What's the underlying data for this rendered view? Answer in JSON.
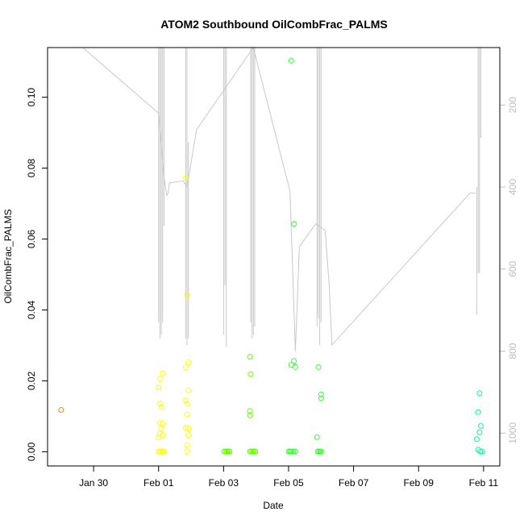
{
  "chart_data": {
    "type": "scatter",
    "title": "ATOM2 Southbound OilCombFrac_PALMS",
    "xlabel": "Date",
    "ylabel": "OilCombFrac_PALMS",
    "x_tick_labels": [
      "Jan 30",
      "Feb 01",
      "Feb 03",
      "Feb 05",
      "Feb 07",
      "Feb 09",
      "Feb 11"
    ],
    "x_ticks": [
      "2017-01-30",
      "2017-02-01",
      "2017-02-03",
      "2017-02-05",
      "2017-02-07",
      "2017-02-09",
      "2017-02-11"
    ],
    "xlim": [
      "2017-01-28T14:00",
      "2017-02-11T12:00"
    ],
    "ylim": [
      -0.004,
      0.114
    ],
    "y_ticks": [
      0.0,
      0.02,
      0.04,
      0.06,
      0.08,
      0.1
    ],
    "y_tick_labels": [
      "0.00",
      "0.02",
      "0.04",
      "0.06",
      "0.08",
      "0.10"
    ],
    "right_axis": {
      "ticks": [
        200,
        400,
        600,
        800,
        1000
      ],
      "tick_labels": [
        "200",
        "400",
        "600",
        "800",
        "1000"
      ],
      "lim": [
        60,
        1080
      ],
      "reversed": true,
      "color": "#bdbdbd"
    },
    "points": [
      {
        "x": "2017-01-29T00:00",
        "y": 0.0118,
        "color": "#ff8c00"
      },
      {
        "x": "2017-02-01T00:00",
        "y": 0.0182,
        "color": "#ffff00"
      },
      {
        "x": "2017-02-01T01:00",
        "y": 0.0206,
        "color": "#ffff00"
      },
      {
        "x": "2017-02-01T03:00",
        "y": 0.0221,
        "color": "#ffff00"
      },
      {
        "x": "2017-02-01T01:00",
        "y": 0.0136,
        "color": "#ffff00"
      },
      {
        "x": "2017-02-01T02:00",
        "y": 0.0126,
        "color": "#ffff00"
      },
      {
        "x": "2017-02-01T01:00",
        "y": 0.0081,
        "color": "#ffff00"
      },
      {
        "x": "2017-02-01T03:00",
        "y": 0.0079,
        "color": "#ffff00"
      },
      {
        "x": "2017-02-01T02:00",
        "y": 0.0065,
        "color": "#ffff00"
      },
      {
        "x": "2017-02-01T01:00",
        "y": 0.0052,
        "color": "#ffff00"
      },
      {
        "x": "2017-02-01T03:00",
        "y": 0.0047,
        "color": "#ffff00"
      },
      {
        "x": "2017-02-01T00:00",
        "y": 0.0041,
        "color": "#ffff00"
      },
      {
        "x": "2017-02-01T00:00",
        "y": 0.0001,
        "color": "#ffff00"
      },
      {
        "x": "2017-02-01T01:00",
        "y": 0.0001,
        "color": "#ffff00"
      },
      {
        "x": "2017-02-01T02:00",
        "y": 0.0001,
        "color": "#ffff00"
      },
      {
        "x": "2017-02-01T03:00",
        "y": 0.0001,
        "color": "#ffff00"
      },
      {
        "x": "2017-02-01T04:00",
        "y": 0.0001,
        "color": "#ffff00"
      },
      {
        "x": "2017-02-01T20:00",
        "y": 0.0772,
        "color": "#ffff00"
      },
      {
        "x": "2017-02-01T21:00",
        "y": 0.0442,
        "color": "#ffff00"
      },
      {
        "x": "2017-02-01T22:00",
        "y": 0.0252,
        "color": "#ffff00"
      },
      {
        "x": "2017-02-01T20:00",
        "y": 0.0238,
        "color": "#ffff00"
      },
      {
        "x": "2017-02-01T22:00",
        "y": 0.0173,
        "color": "#ffff00"
      },
      {
        "x": "2017-02-01T20:00",
        "y": 0.0145,
        "color": "#ffff00"
      },
      {
        "x": "2017-02-01T21:00",
        "y": 0.0135,
        "color": "#ffff00"
      },
      {
        "x": "2017-02-01T21:00",
        "y": 0.0105,
        "color": "#ffff00"
      },
      {
        "x": "2017-02-01T20:00",
        "y": 0.0068,
        "color": "#ffff00"
      },
      {
        "x": "2017-02-01T22:00",
        "y": 0.0065,
        "color": "#ffff00"
      },
      {
        "x": "2017-02-01T22:00",
        "y": 0.0047,
        "color": "#ffff00"
      },
      {
        "x": "2017-02-01T21:00",
        "y": 0.0019,
        "color": "#ffff00"
      },
      {
        "x": "2017-02-01T21:00",
        "y": 0.0001,
        "color": "#ffff00"
      },
      {
        "x": "2017-02-03T00:30",
        "y": 0.0001,
        "color": "#66ff00"
      },
      {
        "x": "2017-02-03T01:30",
        "y": 0.0001,
        "color": "#66ff00"
      },
      {
        "x": "2017-02-03T02:30",
        "y": 0.0001,
        "color": "#66ff00"
      },
      {
        "x": "2017-02-03T03:30",
        "y": 0.0001,
        "color": "#66ff00"
      },
      {
        "x": "2017-02-03T04:30",
        "y": 0.0001,
        "color": "#66ff00"
      },
      {
        "x": "2017-02-03T19:30",
        "y": 0.0268,
        "color": "#66ff00"
      },
      {
        "x": "2017-02-03T20:00",
        "y": 0.0219,
        "color": "#66ff00"
      },
      {
        "x": "2017-02-03T19:30",
        "y": 0.0115,
        "color": "#66ff00"
      },
      {
        "x": "2017-02-03T19:30",
        "y": 0.0103,
        "color": "#66ff00"
      },
      {
        "x": "2017-02-03T19:30",
        "y": 0.0001,
        "color": "#66ff00"
      },
      {
        "x": "2017-02-03T20:30",
        "y": 0.0001,
        "color": "#66ff00"
      },
      {
        "x": "2017-02-03T21:30",
        "y": 0.0001,
        "color": "#66ff00"
      },
      {
        "x": "2017-02-03T22:30",
        "y": 0.0001,
        "color": "#66ff00"
      },
      {
        "x": "2017-02-03T23:30",
        "y": 0.0001,
        "color": "#66ff00"
      },
      {
        "x": "2017-02-05T02:00",
        "y": 0.1103,
        "color": "#33ff33"
      },
      {
        "x": "2017-02-05T04:00",
        "y": 0.0643,
        "color": "#33ff33"
      },
      {
        "x": "2017-02-05T04:00",
        "y": 0.0256,
        "color": "#33ff33"
      },
      {
        "x": "2017-02-05T02:00",
        "y": 0.0245,
        "color": "#33ff33"
      },
      {
        "x": "2017-02-05T05:00",
        "y": 0.0239,
        "color": "#33ff33"
      },
      {
        "x": "2017-02-05T00:00",
        "y": 0.0001,
        "color": "#33ff33"
      },
      {
        "x": "2017-02-05T01:00",
        "y": 0.0001,
        "color": "#33ff33"
      },
      {
        "x": "2017-02-05T02:00",
        "y": 0.0001,
        "color": "#33ff33"
      },
      {
        "x": "2017-02-05T03:30",
        "y": 0.0001,
        "color": "#33ff33"
      },
      {
        "x": "2017-02-05T05:00",
        "y": 0.0001,
        "color": "#33ff33"
      },
      {
        "x": "2017-02-05T22:00",
        "y": 0.0239,
        "color": "#33ff33"
      },
      {
        "x": "2017-02-06T00:00",
        "y": 0.0162,
        "color": "#33ff33"
      },
      {
        "x": "2017-02-06T00:00",
        "y": 0.0151,
        "color": "#33ff33"
      },
      {
        "x": "2017-02-05T21:00",
        "y": 0.0041,
        "color": "#33ff33"
      },
      {
        "x": "2017-02-05T21:30",
        "y": 0.0001,
        "color": "#33ff33"
      },
      {
        "x": "2017-02-05T22:30",
        "y": 0.0001,
        "color": "#33ff33"
      },
      {
        "x": "2017-02-05T23:30",
        "y": 0.0001,
        "color": "#33ff33"
      },
      {
        "x": "2017-02-06T00:00",
        "y": 0.0001,
        "color": "#33ff33"
      },
      {
        "x": "2017-02-10T21:00",
        "y": 0.0165,
        "color": "#00ff99"
      },
      {
        "x": "2017-02-10T20:00",
        "y": 0.0112,
        "color": "#00ff99"
      },
      {
        "x": "2017-02-10T22:00",
        "y": 0.0073,
        "color": "#00ff99"
      },
      {
        "x": "2017-02-10T21:00",
        "y": 0.0055,
        "color": "#00ff99"
      },
      {
        "x": "2017-02-10T19:00",
        "y": 0.0036,
        "color": "#00ff99"
      },
      {
        "x": "2017-02-10T20:00",
        "y": 0.0006,
        "color": "#00ff99"
      },
      {
        "x": "2017-02-10T21:30",
        "y": 0.0001,
        "color": "#00ff99"
      },
      {
        "x": "2017-02-10T23:00",
        "y": 0.0001,
        "color": "#00ff99"
      }
    ],
    "altitude_line": {
      "color": "#c8c8c8",
      "axis": "right",
      "points": [
        {
          "x": "2017-01-29T16:00",
          "y": 55
        },
        {
          "x": "2017-02-01T00:00",
          "y": 220
        },
        {
          "x": "2017-02-01T04:00",
          "y": 375
        },
        {
          "x": "2017-02-01T06:00",
          "y": 420
        },
        {
          "x": "2017-02-01T07:00",
          "y": 415
        },
        {
          "x": "2017-02-01T08:00",
          "y": 390
        },
        {
          "x": "2017-02-01T18:00",
          "y": 385
        },
        {
          "x": "2017-02-01T21:00",
          "y": 400
        },
        {
          "x": "2017-02-02T04:00",
          "y": 260
        },
        {
          "x": "2017-02-03T22:00",
          "y": 55
        },
        {
          "x": "2017-02-05T01:00",
          "y": 410
        },
        {
          "x": "2017-02-05T05:00",
          "y": 800
        },
        {
          "x": "2017-02-05T08:00",
          "y": 545
        },
        {
          "x": "2017-02-05T20:00",
          "y": 490
        },
        {
          "x": "2017-02-06T03:00",
          "y": 505
        },
        {
          "x": "2017-02-06T06:00",
          "y": 640
        },
        {
          "x": "2017-02-06T08:00",
          "y": 785
        },
        {
          "x": "2017-02-10T14:00",
          "y": 415
        },
        {
          "x": "2017-02-10T18:00",
          "y": 415
        }
      ],
      "spikes": [
        {
          "x": "2017-02-01T00:00",
          "low": 60,
          "high": 730
        },
        {
          "x": "2017-02-01T01:00",
          "low": 60,
          "high": 770
        },
        {
          "x": "2017-02-01T02:00",
          "low": 60,
          "high": 760
        },
        {
          "x": "2017-02-01T03:00",
          "low": 60,
          "high": 730
        },
        {
          "x": "2017-02-01T04:00",
          "low": 60,
          "high": 495
        },
        {
          "x": "2017-02-01T20:00",
          "low": 60,
          "high": 770
        },
        {
          "x": "2017-02-01T21:00",
          "low": 60,
          "high": 785
        },
        {
          "x": "2017-02-01T22:00",
          "low": 290,
          "high": 770
        },
        {
          "x": "2017-02-03T00:00",
          "low": 60,
          "high": 760
        },
        {
          "x": "2017-02-03T01:00",
          "low": 60,
          "high": 640
        },
        {
          "x": "2017-02-03T02:00",
          "low": 60,
          "high": 790
        },
        {
          "x": "2017-02-03T20:00",
          "low": 60,
          "high": 730
        },
        {
          "x": "2017-02-03T21:00",
          "low": 60,
          "high": 770
        },
        {
          "x": "2017-02-03T22:00",
          "low": 60,
          "high": 760
        },
        {
          "x": "2017-02-03T23:00",
          "low": 60,
          "high": 740
        },
        {
          "x": "2017-02-05T21:00",
          "low": 60,
          "high": 740
        },
        {
          "x": "2017-02-05T22:00",
          "low": 60,
          "high": 720
        },
        {
          "x": "2017-02-05T23:00",
          "low": 60,
          "high": 785
        },
        {
          "x": "2017-02-06T00:00",
          "low": 60,
          "high": 730
        },
        {
          "x": "2017-02-10T19:00",
          "low": 400,
          "high": 710
        },
        {
          "x": "2017-02-10T20:00",
          "low": 60,
          "high": 610
        },
        {
          "x": "2017-02-10T21:00",
          "low": 60,
          "high": 610
        },
        {
          "x": "2017-02-10T22:00",
          "low": 60,
          "high": 280
        }
      ]
    }
  }
}
